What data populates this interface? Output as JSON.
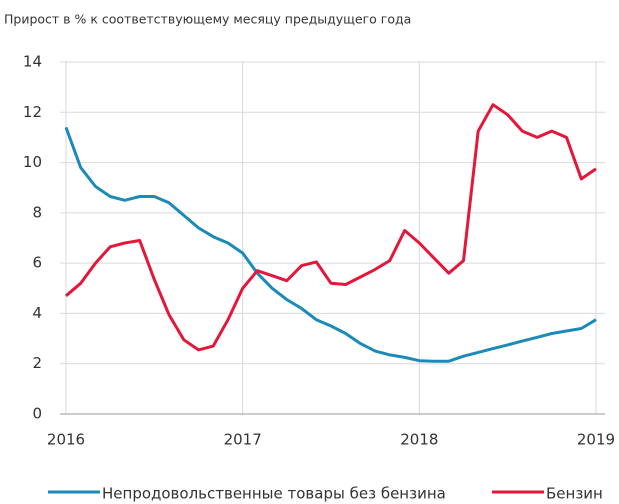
{
  "chart_data": {
    "type": "line",
    "title": "Прирост в % к соответствующему месяцу предыдущего года",
    "x": [
      2016,
      2016.083,
      2016.167,
      2016.25,
      2016.333,
      2016.417,
      2016.5,
      2016.583,
      2016.667,
      2016.75,
      2016.833,
      2016.917,
      2017,
      2017.083,
      2017.167,
      2017.25,
      2017.333,
      2017.417,
      2017.5,
      2017.583,
      2017.667,
      2017.75,
      2017.833,
      2017.917,
      2018,
      2018.083,
      2018.167,
      2018.25,
      2018.333,
      2018.417,
      2018.5,
      2018.583,
      2018.667,
      2018.75,
      2018.833,
      2018.917,
      2019
    ],
    "series": [
      {
        "name": "Непродовольственные товары без бензина",
        "color": "#1b8ab8",
        "values": [
          11.4,
          9.8,
          9.05,
          8.65,
          8.5,
          8.65,
          8.65,
          8.4,
          7.9,
          7.4,
          7.05,
          6.8,
          6.4,
          5.6,
          5.0,
          4.55,
          4.2,
          3.75,
          3.5,
          3.2,
          2.8,
          2.5,
          2.35,
          2.25,
          2.12,
          2.1,
          2.1,
          2.3,
          2.45,
          2.6,
          2.75,
          2.9,
          3.05,
          3.2,
          3.3,
          3.4,
          3.75
        ]
      },
      {
        "name": "Бензин",
        "color": "#e4163a",
        "values": [
          4.7,
          5.2,
          6.0,
          6.65,
          6.8,
          6.9,
          5.35,
          3.95,
          2.95,
          2.55,
          2.7,
          3.75,
          5.0,
          5.7,
          5.5,
          5.3,
          5.9,
          6.05,
          5.2,
          5.15,
          5.45,
          5.75,
          6.1,
          7.3,
          6.8,
          6.2,
          5.6,
          6.1,
          11.25,
          12.3,
          11.9,
          11.25,
          11.0,
          11.25,
          11.0,
          9.35,
          9.75
        ]
      }
    ],
    "xlim": [
      2015.966,
      2019.051
    ],
    "xticks": [
      2016,
      2017,
      2018,
      2019
    ],
    "ylim": [
      0,
      14
    ],
    "yticks": [
      0,
      2,
      4,
      6,
      8,
      10,
      12,
      14
    ],
    "grid": true
  }
}
